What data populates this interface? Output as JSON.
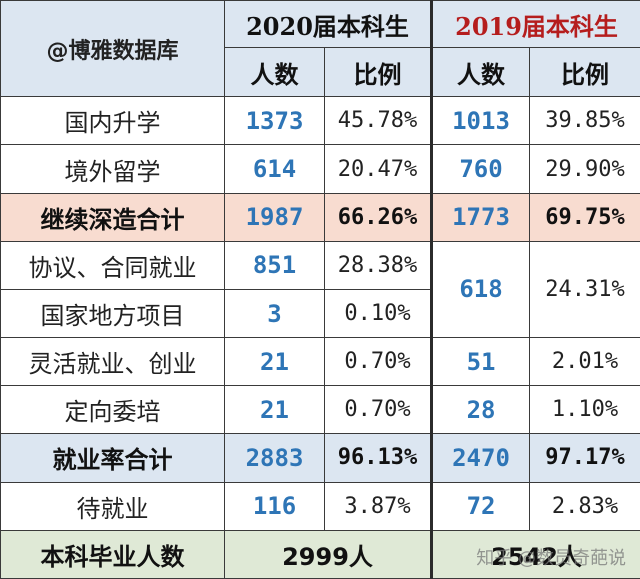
{
  "header": {
    "db_label": "@博雅数据库",
    "year2020": "2020届本科生",
    "year2019": "2019届本科生",
    "col_count": "人数",
    "col_ratio": "比例"
  },
  "colors": {
    "header_bg": "#dce6f1",
    "year2019_text": "#b51d1d",
    "count_text": "#2e75b6",
    "sum_pink_bg": "#f8dcd0",
    "sum_blue_bg": "#dce6f1",
    "sum_green_bg": "#dfe9d6"
  },
  "rows": [
    {
      "label": "国内升学",
      "c2020": "1373",
      "p2020": "45.78%",
      "c2019": "1013",
      "p2019": "39.85%"
    },
    {
      "label": "境外留学",
      "c2020": "614",
      "p2020": "20.47%",
      "c2019": "760",
      "p2019": "29.90%"
    },
    {
      "label": "继续深造合计",
      "c2020": "1987",
      "p2020": "66.26%",
      "c2019": "1773",
      "p2019": "69.75%"
    },
    {
      "label": "协议、合同就业",
      "c2020": "851",
      "p2020": "28.38%",
      "c2019": "618",
      "p2019": "24.31%"
    },
    {
      "label": "国家地方项目",
      "c2020": "3",
      "p2020": "0.10%"
    },
    {
      "label": "灵活就业、创业",
      "c2020": "21",
      "p2020": "0.70%",
      "c2019": "51",
      "p2019": "2.01%"
    },
    {
      "label": "定向委培",
      "c2020": "21",
      "p2020": "0.70%",
      "c2019": "28",
      "p2019": "1.10%"
    },
    {
      "label": "就业率合计",
      "c2020": "2883",
      "p2020": "96.13%",
      "c2019": "2470",
      "p2019": "97.17%"
    },
    {
      "label": "待就业",
      "c2020": "116",
      "p2020": "3.87%",
      "c2019": "72",
      "p2019": "2.83%"
    }
  ],
  "footer": {
    "label": "本科毕业人数",
    "total2020": "2999人",
    "total2019": "2542人",
    "watermark": "知乎 @数员奇葩说"
  }
}
